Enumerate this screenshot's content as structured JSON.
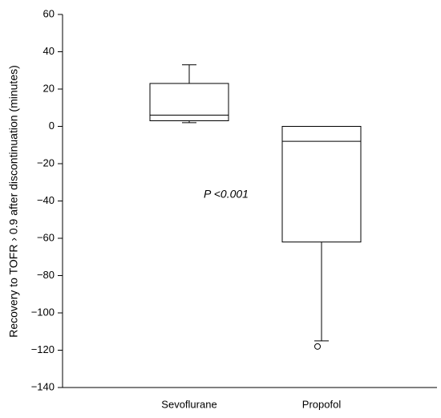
{
  "chart_data": {
    "type": "box",
    "y_label": "Recovery to TOFR › 0.9 after discontinuation (minutes)",
    "annotation": "P <0.001",
    "categories": [
      "Sevoflurane",
      "Propofol"
    ],
    "boxes": [
      {
        "low": 2,
        "q1": 3,
        "median": 6,
        "q3": 23,
        "high": 33,
        "outliers": []
      },
      {
        "low": -115,
        "q1": -62,
        "median": -8,
        "q3": 0,
        "high": 0,
        "outliers": [
          -118
        ]
      }
    ],
    "ylim": [
      -140,
      60
    ],
    "yticks": [
      {
        "value": -140,
        "label": "−140"
      },
      {
        "value": -120,
        "label": "−120"
      },
      {
        "value": -100,
        "label": "−100"
      },
      {
        "value": -80,
        "label": "−80"
      },
      {
        "value": -60,
        "label": "−60"
      },
      {
        "value": -40,
        "label": "−40"
      },
      {
        "value": -20,
        "label": "−20"
      },
      0,
      20,
      40,
      60
    ],
    "color": "#000000"
  }
}
